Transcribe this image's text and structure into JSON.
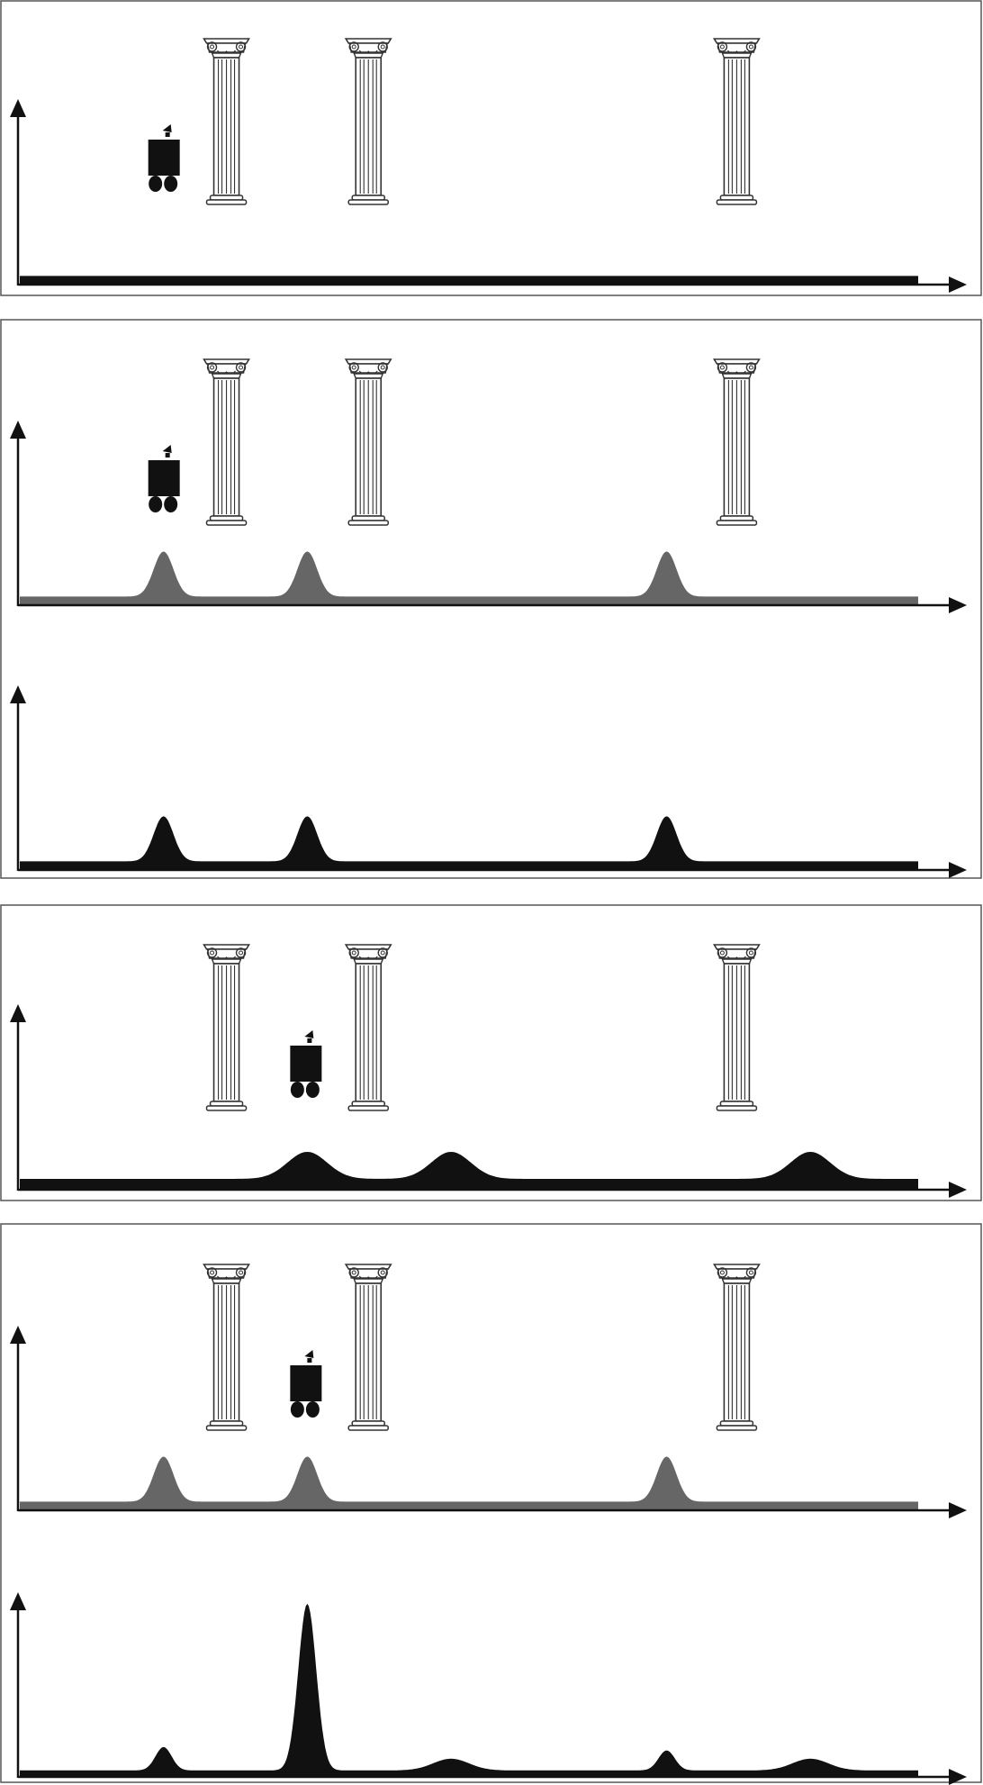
{
  "colors": {
    "ink": "#111111",
    "belief_fill": "#111111",
    "measurement_fill": "#666666",
    "frame": "#555555",
    "column_stroke": "#333333"
  },
  "icons": [
    "ionic-column-icon",
    "robot-icon"
  ],
  "domain_x": [
    0,
    1000
  ],
  "columns_x": [
    230,
    388,
    798
  ],
  "stages": [
    {
      "name": "stage-1-initial",
      "robot_x": 160,
      "plots": [
        {
          "kind": "belief",
          "baseline": 0.08,
          "bumps": []
        }
      ]
    },
    {
      "name": "stage-2-sense",
      "robot_x": 160,
      "plots": [
        {
          "kind": "measurement",
          "baseline": 0.08,
          "bumps": [
            {
              "mu": 160,
              "sigma": 11,
              "amp": 1
            },
            {
              "mu": 320,
              "sigma": 11,
              "amp": 1
            },
            {
              "mu": 720,
              "sigma": 11,
              "amp": 1
            }
          ]
        },
        {
          "kind": "belief",
          "baseline": 0.08,
          "bumps": [
            {
              "mu": 160,
              "sigma": 11,
              "amp": 1
            },
            {
              "mu": 320,
              "sigma": 11,
              "amp": 1
            },
            {
              "mu": 720,
              "sigma": 11,
              "amp": 1
            }
          ]
        }
      ]
    },
    {
      "name": "stage-3-move",
      "robot_x": 318,
      "plots": [
        {
          "kind": "belief",
          "baseline": 0.1,
          "bumps": [
            {
              "mu": 320,
              "sigma": 22,
              "amp": 0.75
            },
            {
              "mu": 480,
              "sigma": 22,
              "amp": 0.75
            },
            {
              "mu": 880,
              "sigma": 22,
              "amp": 0.75
            }
          ]
        }
      ]
    },
    {
      "name": "stage-4-sense-again",
      "robot_x": 318,
      "plots": [
        {
          "kind": "measurement",
          "baseline": 0.08,
          "bumps": [
            {
              "mu": 160,
              "sigma": 11,
              "amp": 1
            },
            {
              "mu": 320,
              "sigma": 11,
              "amp": 1
            },
            {
              "mu": 720,
              "sigma": 11,
              "amp": 1
            }
          ]
        },
        {
          "kind": "belief",
          "baseline": 0.04,
          "bumps": [
            {
              "mu": 160,
              "sigma": 9,
              "amp": 0.14
            },
            {
              "mu": 320,
              "sigma": 10,
              "amp": 1
            },
            {
              "mu": 480,
              "sigma": 20,
              "amp": 0.07
            },
            {
              "mu": 720,
              "sigma": 9,
              "amp": 0.12
            },
            {
              "mu": 880,
              "sigma": 20,
              "amp": 0.07
            }
          ]
        }
      ]
    }
  ]
}
